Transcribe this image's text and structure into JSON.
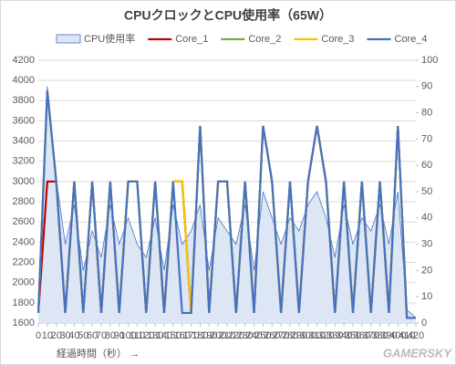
{
  "chart_data": {
    "type": "line",
    "title": "CPUクロックとCPU使用率（65W）",
    "x_label": "経過時間（秒） →",
    "watermark": "GAMERSKY",
    "x": [
      0,
      10,
      20,
      30,
      40,
      50,
      60,
      70,
      80,
      90,
      100,
      110,
      120,
      130,
      140,
      150,
      160,
      170,
      180,
      190,
      200,
      210,
      220,
      230,
      240,
      250,
      260,
      270,
      280,
      290,
      300,
      310,
      320,
      330,
      340,
      350,
      360,
      370,
      380,
      390,
      400,
      410,
      420
    ],
    "xlim": [
      0,
      420
    ],
    "xticks": [
      0,
      10,
      20,
      30,
      40,
      50,
      60,
      70,
      80,
      90,
      100,
      110,
      120,
      130,
      140,
      150,
      160,
      170,
      180,
      190,
      200,
      210,
      220,
      230,
      240,
      250,
      260,
      270,
      280,
      290,
      300,
      310,
      320,
      330,
      340,
      350,
      360,
      370,
      380,
      390,
      400,
      410,
      420
    ],
    "ylim": [
      1600,
      4200
    ],
    "yticks": [
      1600,
      1800,
      2000,
      2200,
      2400,
      2600,
      2800,
      3000,
      3200,
      3400,
      3600,
      3800,
      4000,
      4200
    ],
    "y2lim": [
      0,
      100
    ],
    "y2ticks": [
      0,
      10,
      20,
      30,
      40,
      50,
      60,
      70,
      80,
      90,
      100
    ],
    "grid": true,
    "series": [
      {
        "name": "CPU使用率",
        "type": "area",
        "axis": "y2",
        "color": "#4472c4",
        "fill": "#dce6f4",
        "values": [
          5,
          90,
          55,
          30,
          45,
          20,
          35,
          25,
          45,
          30,
          40,
          30,
          25,
          40,
          20,
          45,
          30,
          35,
          45,
          20,
          40,
          35,
          30,
          45,
          20,
          50,
          40,
          30,
          40,
          35,
          45,
          50,
          40,
          25,
          45,
          30,
          40,
          35,
          45,
          30,
          50,
          5,
          2
        ]
      },
      {
        "name": "Core_1",
        "color": "#c00000",
        "values": [
          1700,
          3000,
          3000,
          1700,
          3000,
          1700,
          3000,
          1700,
          3000,
          1700,
          3000,
          3000,
          1700,
          3000,
          1700,
          3000,
          3000,
          1700,
          3550,
          1700,
          3000,
          3000,
          1700,
          3000,
          1700,
          3550,
          3000,
          1700,
          3000,
          1700,
          3000,
          3550,
          3000,
          1700,
          3000,
          1700,
          3000,
          1700,
          3000,
          1700,
          3550,
          1650,
          1650
        ]
      },
      {
        "name": "Core_2",
        "color": "#70ad47",
        "values": [
          1700,
          3900,
          3000,
          1700,
          3000,
          1700,
          3000,
          1700,
          3000,
          1700,
          3000,
          3000,
          1700,
          3000,
          1700,
          3000,
          3000,
          1700,
          3550,
          1700,
          3000,
          3000,
          1700,
          3000,
          1700,
          3550,
          3000,
          1700,
          3000,
          1700,
          3000,
          3550,
          3000,
          1700,
          3000,
          1700,
          3000,
          1700,
          3000,
          1700,
          3550,
          1650,
          1650
        ]
      },
      {
        "name": "Core_3",
        "color": "#ffc000",
        "values": [
          1700,
          3900,
          3000,
          1700,
          3000,
          1700,
          3000,
          1700,
          3000,
          1700,
          3000,
          3000,
          1700,
          3000,
          1700,
          3000,
          3000,
          1700,
          3550,
          1700,
          3000,
          3000,
          1700,
          3000,
          1700,
          3550,
          3000,
          1700,
          3000,
          1700,
          3000,
          3550,
          3000,
          1700,
          3000,
          1700,
          3000,
          1700,
          3000,
          1700,
          3550,
          1650,
          1650
        ]
      },
      {
        "name": "Core_4",
        "color": "#4472c4",
        "values": [
          1700,
          3900,
          3000,
          1700,
          3000,
          1700,
          3000,
          1700,
          3000,
          1700,
          3000,
          3000,
          1700,
          3000,
          1700,
          3000,
          1700,
          1700,
          3550,
          1700,
          3000,
          3000,
          1700,
          3000,
          1700,
          3550,
          3000,
          1700,
          3000,
          1700,
          3000,
          3550,
          3000,
          1700,
          3000,
          1700,
          3000,
          1700,
          3000,
          1700,
          3550,
          1650,
          1650
        ]
      }
    ]
  }
}
